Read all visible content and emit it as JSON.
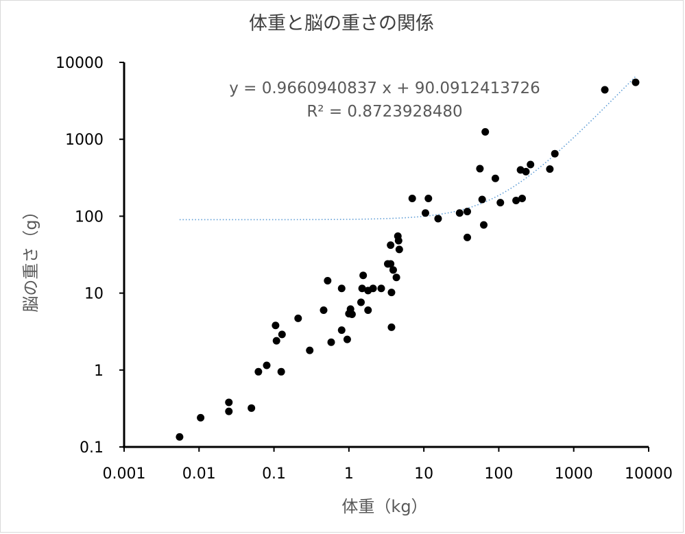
{
  "chart_data": {
    "type": "scatter",
    "title": "体重と脳の重さの関係",
    "xlabel": "体重（kg）",
    "ylabel": "脳の重さ（g）",
    "x_scale": "log",
    "y_scale": "log",
    "xlim": [
      0.001,
      10000
    ],
    "ylim": [
      0.1,
      10000
    ],
    "x_tick_labels": [
      "0.001",
      "0.01",
      "0.1",
      "1",
      "10",
      "100",
      "1000",
      "10000"
    ],
    "y_tick_labels": [
      "0.1",
      "1",
      "10",
      "100",
      "1000",
      "10000"
    ],
    "grid": false,
    "legend": "none",
    "marker_color": "#000000",
    "trendline": {
      "type": "linear",
      "color": "#5B9BD5",
      "style": "dotted",
      "slope": 0.9660940837,
      "intercept": 90.0912413726,
      "equation_label": "y = 0.9660940837 x + 90.0912413726",
      "r2_label": "R² = 0.8723928480"
    },
    "points": [
      [
        0.0055,
        0.135
      ],
      [
        0.0105,
        0.24
      ],
      [
        0.025,
        0.38
      ],
      [
        0.025,
        0.29
      ],
      [
        0.05,
        0.32
      ],
      [
        0.062,
        0.95
      ],
      [
        0.08,
        1.15
      ],
      [
        0.105,
        3.8
      ],
      [
        0.108,
        2.4
      ],
      [
        0.125,
        0.95
      ],
      [
        0.128,
        2.9
      ],
      [
        0.21,
        4.7
      ],
      [
        0.3,
        1.8
      ],
      [
        0.46,
        6.0
      ],
      [
        0.52,
        14.5
      ],
      [
        0.58,
        2.3
      ],
      [
        0.8,
        11.5
      ],
      [
        0.8,
        3.3
      ],
      [
        0.95,
        2.5
      ],
      [
        1.0,
        5.4
      ],
      [
        1.05,
        6.2
      ],
      [
        1.1,
        5.3
      ],
      [
        1.45,
        7.6
      ],
      [
        1.5,
        11.5
      ],
      [
        1.55,
        17.0
      ],
      [
        1.8,
        10.8
      ],
      [
        1.8,
        6.0
      ],
      [
        2.1,
        11.5
      ],
      [
        2.7,
        11.5
      ],
      [
        3.3,
        24.0
      ],
      [
        3.6,
        24.0
      ],
      [
        3.6,
        42.0
      ],
      [
        3.7,
        10.2
      ],
      [
        3.7,
        3.6
      ],
      [
        3.9,
        20.0
      ],
      [
        4.3,
        16.0
      ],
      [
        4.5,
        55.0
      ],
      [
        4.6,
        48.0
      ],
      [
        4.7,
        37.0
      ],
      [
        7.0,
        170.0
      ],
      [
        10.5,
        110.0
      ],
      [
        11.5,
        170.0
      ],
      [
        15.5,
        93.0
      ],
      [
        30.0,
        110.0
      ],
      [
        38.0,
        115.0
      ],
      [
        38.0,
        53.0
      ],
      [
        56.0,
        415.0
      ],
      [
        60.0,
        165.0
      ],
      [
        63.0,
        77.0
      ],
      [
        66.0,
        1250.0
      ],
      [
        90.0,
        310.0
      ],
      [
        105.0,
        150.0
      ],
      [
        170.0,
        160.0
      ],
      [
        195.0,
        400.0
      ],
      [
        205.0,
        170.0
      ],
      [
        230.0,
        380.0
      ],
      [
        265.0,
        470.0
      ],
      [
        480.0,
        410.0
      ],
      [
        560.0,
        650.0
      ],
      [
        2600.0,
        4400.0
      ],
      [
        6700.0,
        5500.0
      ]
    ]
  }
}
